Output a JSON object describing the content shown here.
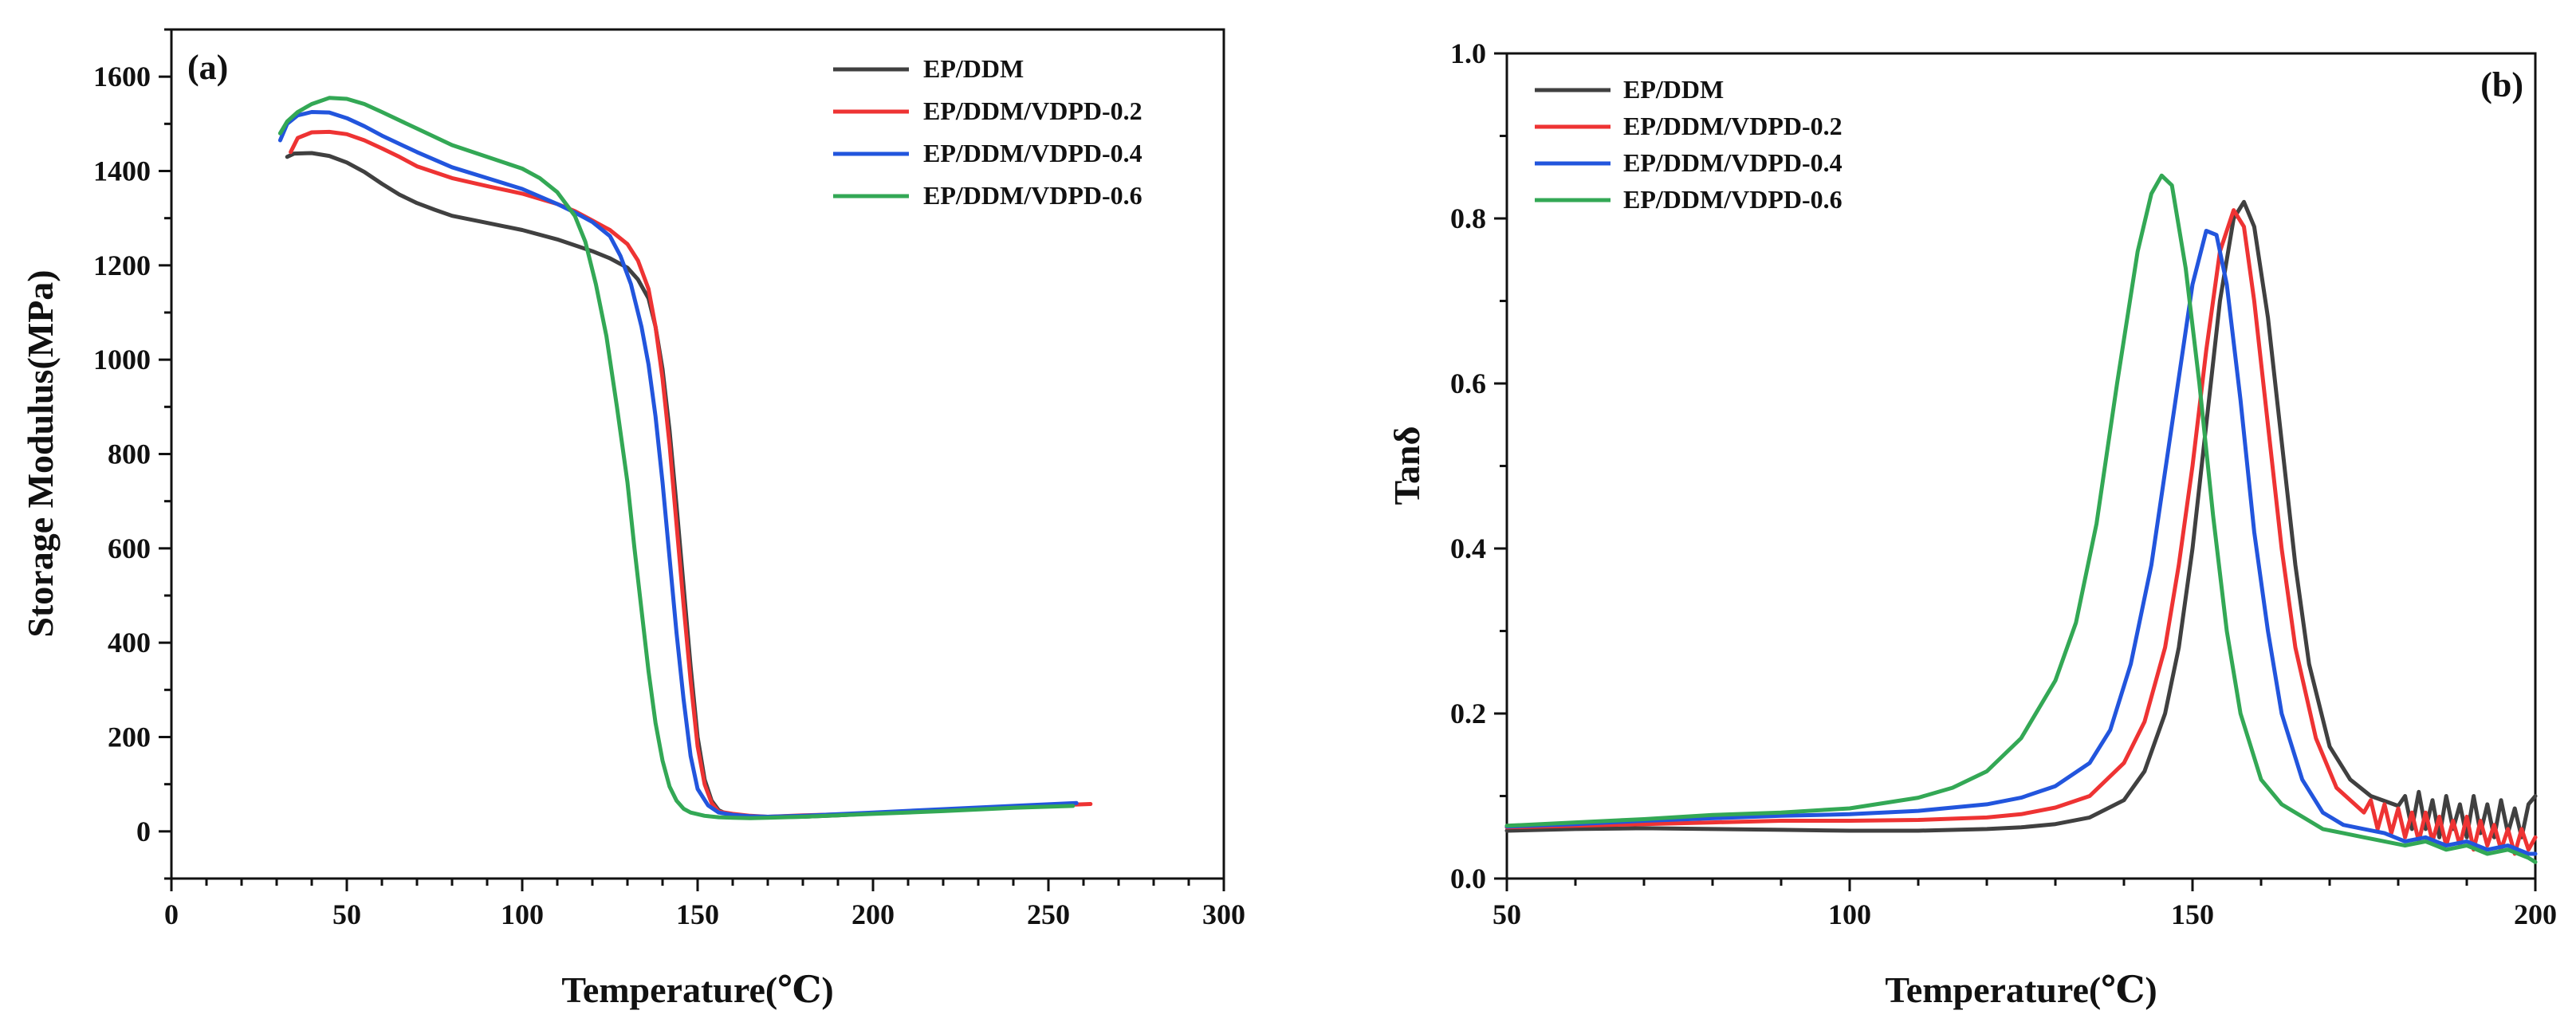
{
  "chart_data": [
    {
      "type": "line",
      "panel_label": "(a)",
      "xlabel": "Temperature(℃)",
      "ylabel": "Storage Modulus(MPa)",
      "xlim": [
        0,
        300
      ],
      "ylim": [
        -100,
        1700
      ],
      "xticks": [
        0,
        50,
        100,
        150,
        200,
        250,
        300
      ],
      "yticks": [
        0,
        200,
        400,
        600,
        800,
        1000,
        1200,
        1400,
        1600
      ],
      "x_minor_step": 10,
      "y_minor_step": 100,
      "legend_position": "top-right",
      "grid": false,
      "series": [
        {
          "name": "EP/DDM",
          "color": "#404040",
          "x": [
            33,
            35,
            40,
            45,
            50,
            55,
            60,
            65,
            70,
            75,
            80,
            90,
            100,
            110,
            120,
            125,
            130,
            133,
            136,
            138,
            140,
            142,
            144,
            146,
            148,
            150,
            152,
            154,
            156,
            158,
            160,
            165,
            170,
            180,
            190,
            200,
            220,
            240,
            258
          ],
          "y": [
            1430,
            1437,
            1438,
            1432,
            1418,
            1398,
            1373,
            1350,
            1332,
            1318,
            1305,
            1290,
            1275,
            1255,
            1230,
            1215,
            1195,
            1170,
            1130,
            1070,
            980,
            850,
            690,
            520,
            350,
            200,
            110,
            65,
            45,
            38,
            35,
            32,
            30,
            31,
            34,
            38,
            44,
            52,
            58
          ]
        },
        {
          "name": "EP/DDM/VDPD-0.2",
          "color": "#ee3333",
          "x": [
            34,
            36,
            40,
            45,
            50,
            55,
            60,
            65,
            70,
            80,
            90,
            100,
            110,
            115,
            120,
            125,
            130,
            133,
            136,
            138,
            140,
            142,
            144,
            146,
            148,
            150,
            152,
            154,
            156,
            160,
            165,
            170,
            180,
            200,
            220,
            240,
            262
          ],
          "y": [
            1440,
            1470,
            1482,
            1483,
            1478,
            1465,
            1448,
            1430,
            1410,
            1385,
            1368,
            1352,
            1330,
            1315,
            1295,
            1275,
            1245,
            1210,
            1150,
            1070,
            960,
            820,
            650,
            480,
            320,
            180,
            100,
            60,
            42,
            37,
            33,
            31,
            34,
            38,
            45,
            52,
            58
          ]
        },
        {
          "name": "EP/DDM/VDPD-0.4",
          "color": "#2255dd",
          "x": [
            31,
            33,
            36,
            40,
            45,
            50,
            55,
            60,
            70,
            80,
            90,
            100,
            110,
            115,
            120,
            125,
            128,
            131,
            134,
            136,
            138,
            140,
            142,
            144,
            146,
            148,
            150,
            153,
            156,
            160,
            165,
            170,
            180,
            200,
            220,
            240,
            258
          ],
          "y": [
            1465,
            1500,
            1518,
            1525,
            1524,
            1512,
            1495,
            1475,
            1440,
            1408,
            1385,
            1362,
            1330,
            1312,
            1292,
            1262,
            1220,
            1160,
            1070,
            990,
            880,
            740,
            580,
            420,
            280,
            160,
            90,
            55,
            40,
            35,
            32,
            31,
            33,
            40,
            47,
            54,
            60
          ]
        },
        {
          "name": "EP/DDM/VDPD-0.6",
          "color": "#33a855",
          "x": [
            31,
            33,
            36,
            40,
            45,
            50,
            55,
            60,
            70,
            80,
            90,
            100,
            105,
            110,
            115,
            118,
            121,
            124,
            127,
            130,
            132,
            134,
            136,
            138,
            140,
            142,
            144,
            146,
            148,
            152,
            156,
            160,
            165,
            170,
            180,
            200,
            220,
            240,
            257
          ],
          "y": [
            1480,
            1505,
            1525,
            1542,
            1555,
            1553,
            1542,
            1525,
            1490,
            1455,
            1430,
            1405,
            1385,
            1355,
            1305,
            1250,
            1160,
            1050,
            900,
            740,
            600,
            470,
            340,
            230,
            150,
            95,
            65,
            48,
            40,
            33,
            30,
            29,
            28,
            29,
            31,
            37,
            43,
            50,
            54
          ]
        }
      ]
    },
    {
      "type": "line",
      "panel_label": "(b)",
      "xlabel": "Temperature(℃)",
      "ylabel": "Tanδ",
      "xlim": [
        50,
        200
      ],
      "ylim": [
        0,
        1.0
      ],
      "xticks": [
        50,
        100,
        150,
        200
      ],
      "yticks": [
        0.0,
        0.2,
        0.4,
        0.6,
        0.8,
        1.0
      ],
      "ytick_labels": [
        "0.0",
        "0.2",
        "0.4",
        "0.6",
        "0.8",
        "1.0"
      ],
      "x_minor_step": 10,
      "y_minor_step": 0.1,
      "legend_position": "top-left",
      "grid": false,
      "series": [
        {
          "name": "EP/DDM",
          "color": "#404040",
          "x": [
            50,
            60,
            70,
            80,
            90,
            100,
            110,
            120,
            125,
            130,
            135,
            140,
            143,
            146,
            148,
            150,
            152,
            154,
            156,
            157.5,
            159,
            161,
            163,
            165,
            167,
            170,
            173,
            176,
            180,
            181,
            182,
            183,
            184,
            185,
            186,
            187,
            188,
            189,
            190,
            191,
            192,
            193,
            194,
            195,
            196,
            197,
            198,
            199,
            200
          ],
          "y": [
            0.058,
            0.06,
            0.061,
            0.06,
            0.059,
            0.058,
            0.058,
            0.06,
            0.062,
            0.066,
            0.074,
            0.095,
            0.13,
            0.2,
            0.28,
            0.4,
            0.55,
            0.7,
            0.8,
            0.82,
            0.79,
            0.68,
            0.53,
            0.38,
            0.26,
            0.16,
            0.12,
            0.1,
            0.088,
            0.1,
            0.06,
            0.105,
            0.06,
            0.095,
            0.05,
            0.1,
            0.06,
            0.09,
            0.05,
            0.1,
            0.055,
            0.09,
            0.05,
            0.095,
            0.055,
            0.085,
            0.05,
            0.09,
            0.1
          ]
        },
        {
          "name": "EP/DDM/VDPD-0.2",
          "color": "#ee3333",
          "x": [
            50,
            60,
            70,
            80,
            90,
            100,
            110,
            120,
            125,
            130,
            135,
            140,
            143,
            146,
            148,
            150,
            152,
            154,
            156,
            157.5,
            159,
            161,
            163,
            165,
            168,
            171,
            175,
            176,
            177,
            178,
            179,
            180,
            181,
            182,
            183,
            184,
            185,
            186,
            187,
            188,
            189,
            190,
            191,
            192,
            193,
            194,
            195,
            196,
            197,
            198,
            199,
            200
          ],
          "y": [
            0.062,
            0.064,
            0.066,
            0.068,
            0.07,
            0.07,
            0.071,
            0.074,
            0.078,
            0.086,
            0.1,
            0.14,
            0.19,
            0.28,
            0.38,
            0.5,
            0.64,
            0.76,
            0.81,
            0.79,
            0.7,
            0.55,
            0.4,
            0.28,
            0.17,
            0.11,
            0.08,
            0.095,
            0.06,
            0.09,
            0.055,
            0.085,
            0.05,
            0.08,
            0.045,
            0.08,
            0.045,
            0.075,
            0.04,
            0.07,
            0.04,
            0.075,
            0.035,
            0.07,
            0.04,
            0.065,
            0.035,
            0.06,
            0.03,
            0.06,
            0.035,
            0.05
          ]
        },
        {
          "name": "EP/DDM/VDPD-0.4",
          "color": "#2255dd",
          "x": [
            50,
            60,
            70,
            80,
            90,
            100,
            110,
            120,
            125,
            130,
            135,
            138,
            141,
            144,
            147,
            150,
            152,
            153.5,
            155,
            157,
            159,
            161,
            163,
            166,
            169,
            172,
            175,
            178,
            181,
            184,
            187,
            190,
            193,
            196,
            199,
            200
          ],
          "y": [
            0.063,
            0.066,
            0.07,
            0.073,
            0.076,
            0.078,
            0.082,
            0.09,
            0.098,
            0.112,
            0.14,
            0.18,
            0.26,
            0.38,
            0.55,
            0.72,
            0.785,
            0.78,
            0.72,
            0.58,
            0.42,
            0.3,
            0.2,
            0.12,
            0.08,
            0.065,
            0.06,
            0.055,
            0.045,
            0.05,
            0.04,
            0.045,
            0.035,
            0.04,
            0.03,
            0.03
          ]
        },
        {
          "name": "EP/DDM/VDPD-0.6",
          "color": "#33a855",
          "x": [
            50,
            60,
            70,
            80,
            90,
            100,
            110,
            115,
            120,
            125,
            130,
            133,
            136,
            139,
            142,
            144,
            145.5,
            147,
            149,
            151,
            153,
            155,
            157,
            160,
            163,
            166,
            169,
            172,
            175,
            178,
            181,
            184,
            187,
            190,
            193,
            196,
            199,
            200
          ],
          "y": [
            0.064,
            0.068,
            0.072,
            0.077,
            0.08,
            0.085,
            0.098,
            0.11,
            0.13,
            0.17,
            0.24,
            0.31,
            0.43,
            0.6,
            0.76,
            0.83,
            0.852,
            0.84,
            0.74,
            0.6,
            0.44,
            0.3,
            0.2,
            0.12,
            0.09,
            0.075,
            0.06,
            0.055,
            0.05,
            0.045,
            0.04,
            0.045,
            0.035,
            0.04,
            0.03,
            0.035,
            0.025,
            0.02
          ]
        }
      ]
    }
  ]
}
